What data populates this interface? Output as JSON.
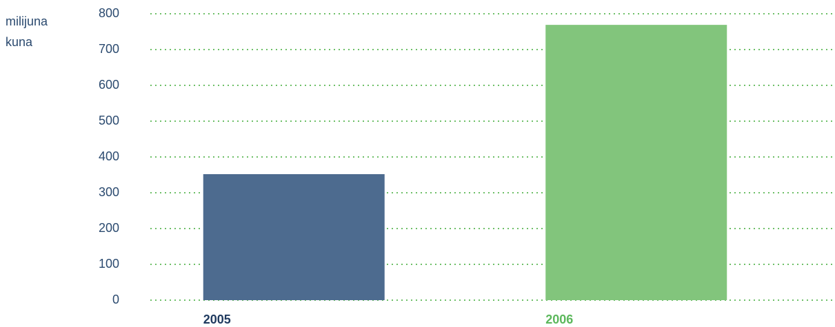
{
  "chart_data": {
    "type": "bar",
    "y_label": "milijuna kuna",
    "categories": [
      "2005",
      "2006"
    ],
    "values": [
      352,
      769
    ],
    "colors": [
      "#4d6b8f",
      "#82c57c"
    ],
    "label_colors": [
      "#1f3a5f",
      "#5cb85c"
    ],
    "ylim": [
      0,
      800
    ],
    "yticks": [
      0,
      100,
      200,
      300,
      400,
      500,
      600,
      700,
      800
    ],
    "grid": true,
    "grid_color": "#6dbf67"
  }
}
